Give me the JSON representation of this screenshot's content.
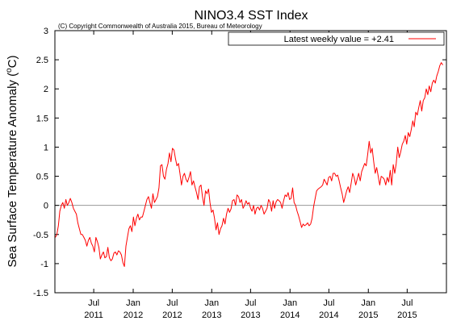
{
  "chart_data": {
    "type": "line",
    "title": "NINO3.4 SST Index",
    "subtitle": "(C) Copyright Commonwealth of Australia 2015, Bureau of Meteorology",
    "xlabel": "",
    "ylabel_prefix": "Sea Surface Temperature Anomaly (",
    "ylabel_sup": "o",
    "ylabel_suffix": "C)",
    "ylim": [
      -1.5,
      3
    ],
    "yticks": [
      -1.5,
      -1,
      -0.5,
      0,
      0.5,
      1,
      1.5,
      2,
      2.5,
      3
    ],
    "ytick_labels": [
      "-1.5",
      "-1",
      "-0.5",
      "0",
      "0.5",
      "1",
      "1.5",
      "2",
      "2.5",
      "3"
    ],
    "xlim": [
      "2011-01-01",
      "2015-12-31"
    ],
    "xticks": [
      {
        "date": "2011-07-01",
        "month": "Jul",
        "year": "2011"
      },
      {
        "date": "2012-01-01",
        "month": "Jan",
        "year": "2012"
      },
      {
        "date": "2012-07-01",
        "month": "Jul",
        "year": "2012"
      },
      {
        "date": "2013-01-01",
        "month": "Jan",
        "year": "2013"
      },
      {
        "date": "2013-07-01",
        "month": "Jul",
        "year": "2013"
      },
      {
        "date": "2014-01-01",
        "month": "Jan",
        "year": "2014"
      },
      {
        "date": "2014-07-01",
        "month": "Jul",
        "year": "2014"
      },
      {
        "date": "2015-01-01",
        "month": "Jan",
        "year": "2015"
      },
      {
        "date": "2015-07-01",
        "month": "Jul",
        "year": "2015"
      }
    ],
    "grid": false,
    "zero_line": true,
    "legend": {
      "label": "Latest weekly value = +2.41",
      "position": "top-right"
    },
    "series": [
      {
        "color": "#ff0000",
        "x": [
          "2011-01-03",
          "2011-01-10",
          "2011-01-17",
          "2011-01-24",
          "2011-01-31",
          "2011-02-07",
          "2011-02-14",
          "2011-02-21",
          "2011-02-28",
          "2011-03-07",
          "2011-03-14",
          "2011-03-21",
          "2011-03-28",
          "2011-04-04",
          "2011-04-11",
          "2011-04-18",
          "2011-04-25",
          "2011-05-02",
          "2011-05-09",
          "2011-05-16",
          "2011-05-23",
          "2011-05-30",
          "2011-06-06",
          "2011-06-13",
          "2011-06-20",
          "2011-06-27",
          "2011-07-04",
          "2011-07-11",
          "2011-07-18",
          "2011-07-25",
          "2011-08-01",
          "2011-08-08",
          "2011-08-15",
          "2011-08-22",
          "2011-08-29",
          "2011-09-05",
          "2011-09-12",
          "2011-09-19",
          "2011-09-26",
          "2011-10-03",
          "2011-10-10",
          "2011-10-17",
          "2011-10-24",
          "2011-10-31",
          "2011-11-07",
          "2011-11-14",
          "2011-11-21",
          "2011-11-28",
          "2011-12-05",
          "2011-12-12",
          "2011-12-19",
          "2011-12-26",
          "2012-01-02",
          "2012-01-09",
          "2012-01-16",
          "2012-01-23",
          "2012-01-30",
          "2012-02-06",
          "2012-02-13",
          "2012-02-20",
          "2012-02-27",
          "2012-03-05",
          "2012-03-12",
          "2012-03-19",
          "2012-03-26",
          "2012-04-02",
          "2012-04-09",
          "2012-04-16",
          "2012-04-23",
          "2012-04-30",
          "2012-05-07",
          "2012-05-14",
          "2012-05-21",
          "2012-05-28",
          "2012-06-04",
          "2012-06-11",
          "2012-06-18",
          "2012-06-25",
          "2012-07-02",
          "2012-07-09",
          "2012-07-16",
          "2012-07-23",
          "2012-07-30",
          "2012-08-06",
          "2012-08-13",
          "2012-08-20",
          "2012-08-27",
          "2012-09-03",
          "2012-09-10",
          "2012-09-17",
          "2012-09-24",
          "2012-10-01",
          "2012-10-08",
          "2012-10-15",
          "2012-10-22",
          "2012-10-29",
          "2012-11-05",
          "2012-11-12",
          "2012-11-19",
          "2012-11-26",
          "2012-12-03",
          "2012-12-10",
          "2012-12-17",
          "2012-12-24",
          "2012-12-31",
          "2013-01-07",
          "2013-01-14",
          "2013-01-21",
          "2013-01-28",
          "2013-02-04",
          "2013-02-11",
          "2013-02-18",
          "2013-02-25",
          "2013-03-04",
          "2013-03-11",
          "2013-03-18",
          "2013-03-25",
          "2013-04-01",
          "2013-04-08",
          "2013-04-15",
          "2013-04-22",
          "2013-04-29",
          "2013-05-06",
          "2013-05-13",
          "2013-05-20",
          "2013-05-27",
          "2013-06-03",
          "2013-06-10",
          "2013-06-17",
          "2013-06-24",
          "2013-07-01",
          "2013-07-08",
          "2013-07-15",
          "2013-07-22",
          "2013-07-29",
          "2013-08-05",
          "2013-08-12",
          "2013-08-19",
          "2013-08-26",
          "2013-09-02",
          "2013-09-09",
          "2013-09-16",
          "2013-09-23",
          "2013-09-30",
          "2013-10-07",
          "2013-10-14",
          "2013-10-21",
          "2013-10-28",
          "2013-11-04",
          "2013-11-11",
          "2013-11-18",
          "2013-11-25",
          "2013-12-02",
          "2013-12-09",
          "2013-12-16",
          "2013-12-23",
          "2013-12-30",
          "2014-01-06",
          "2014-01-13",
          "2014-01-20",
          "2014-01-27",
          "2014-02-03",
          "2014-02-10",
          "2014-02-17",
          "2014-02-24",
          "2014-03-03",
          "2014-03-10",
          "2014-03-17",
          "2014-03-24",
          "2014-03-31",
          "2014-04-07",
          "2014-04-14",
          "2014-04-21",
          "2014-04-28",
          "2014-05-05",
          "2014-05-12",
          "2014-05-19",
          "2014-05-26",
          "2014-06-02",
          "2014-06-09",
          "2014-06-16",
          "2014-06-23",
          "2014-06-30",
          "2014-07-07",
          "2014-07-14",
          "2014-07-21",
          "2014-07-28",
          "2014-08-04",
          "2014-08-11",
          "2014-08-18",
          "2014-08-25",
          "2014-09-01",
          "2014-09-08",
          "2014-09-15",
          "2014-09-22",
          "2014-09-29",
          "2014-10-06",
          "2014-10-13",
          "2014-10-20",
          "2014-10-27",
          "2014-11-03",
          "2014-11-10",
          "2014-11-17",
          "2014-11-24",
          "2014-12-01",
          "2014-12-08",
          "2014-12-15",
          "2014-12-22",
          "2014-12-29",
          "2015-01-05",
          "2015-01-12",
          "2015-01-19",
          "2015-01-26",
          "2015-02-02",
          "2015-02-09",
          "2015-02-16",
          "2015-02-23",
          "2015-03-02",
          "2015-03-09",
          "2015-03-16",
          "2015-03-23",
          "2015-03-30",
          "2015-04-06",
          "2015-04-13",
          "2015-04-20",
          "2015-04-27",
          "2015-05-04",
          "2015-05-11",
          "2015-05-18",
          "2015-05-25",
          "2015-06-01",
          "2015-06-08",
          "2015-06-15",
          "2015-06-22",
          "2015-06-29",
          "2015-07-06",
          "2015-07-13",
          "2015-07-20",
          "2015-07-27",
          "2015-08-03",
          "2015-08-10",
          "2015-08-17",
          "2015-08-24",
          "2015-08-31",
          "2015-09-07",
          "2015-09-14",
          "2015-09-21",
          "2015-09-28",
          "2015-10-05",
          "2015-10-12",
          "2015-10-19",
          "2015-10-26",
          "2015-11-02",
          "2015-11-09",
          "2015-11-16",
          "2015-11-23",
          "2015-11-30",
          "2015-12-07",
          "2015-12-14"
        ],
        "values": [
          -0.55,
          -0.5,
          -0.35,
          -0.1,
          0.0,
          0.05,
          -0.05,
          0.1,
          0.0,
          0.05,
          0.12,
          0.05,
          -0.05,
          -0.1,
          -0.15,
          -0.3,
          -0.4,
          -0.5,
          -0.5,
          -0.55,
          -0.6,
          -0.7,
          -0.6,
          -0.55,
          -0.65,
          -0.7,
          -0.8,
          -0.55,
          -0.62,
          -0.72,
          -0.92,
          -0.85,
          -0.8,
          -0.9,
          -0.88,
          -0.72,
          -0.9,
          -0.95,
          -0.92,
          -0.82,
          -0.8,
          -0.85,
          -0.78,
          -0.8,
          -0.85,
          -0.98,
          -1.05,
          -0.7,
          -0.55,
          -0.4,
          -0.35,
          -0.45,
          -0.2,
          -0.35,
          -0.22,
          -0.15,
          -0.25,
          -0.2,
          -0.2,
          -0.1,
          0.0,
          0.1,
          0.15,
          0.05,
          -0.05,
          0.2,
          0.05,
          0.1,
          0.15,
          0.3,
          0.68,
          0.7,
          0.5,
          0.45,
          0.62,
          0.72,
          0.9,
          0.75,
          0.98,
          0.95,
          0.8,
          0.68,
          0.72,
          0.55,
          0.35,
          0.5,
          0.55,
          0.45,
          0.4,
          0.48,
          0.58,
          0.35,
          0.42,
          0.32,
          0.22,
          0.1,
          0.32,
          0.35,
          0.15,
          0.0,
          0.25,
          0.2,
          0.28,
          0.05,
          -0.12,
          -0.08,
          -0.22,
          -0.42,
          -0.3,
          -0.5,
          -0.4,
          -0.35,
          -0.22,
          -0.32,
          -0.15,
          -0.05,
          -0.12,
          -0.06,
          0.08,
          0.1,
          0.0,
          0.18,
          0.15,
          0.05,
          0.1,
          -0.05,
          0.0,
          0.08,
          0.02,
          0.05,
          -0.05,
          -0.1,
          0.0,
          -0.15,
          -0.05,
          -0.03,
          -0.08,
          0.0,
          -0.05,
          -0.15,
          -0.1,
          -0.05,
          0.1,
          0.05,
          -0.1,
          0.08,
          -0.05,
          0.06,
          0.1,
          0.08,
          0.05,
          -0.05,
          0.08,
          0.18,
          0.15,
          0.22,
          0.1,
          0.12,
          0.3,
          0.05,
          0.0,
          -0.1,
          -0.18,
          -0.28,
          -0.38,
          -0.32,
          -0.35,
          -0.33,
          -0.3,
          -0.35,
          -0.32,
          -0.22,
          -0.02,
          0.12,
          0.25,
          0.28,
          0.3,
          0.32,
          0.35,
          0.45,
          0.4,
          0.35,
          0.48,
          0.5,
          0.42,
          0.55,
          0.55,
          0.5,
          0.52,
          0.42,
          0.3,
          0.2,
          0.05,
          0.15,
          0.25,
          0.32,
          0.22,
          0.38,
          0.55,
          0.48,
          0.35,
          0.45,
          0.55,
          0.42,
          0.58,
          0.65,
          0.72,
          0.68,
          0.88,
          1.1,
          0.9,
          0.98,
          0.75,
          0.55,
          0.65,
          0.5,
          0.35,
          0.5,
          0.48,
          0.45,
          0.35,
          0.48,
          0.4,
          0.6,
          0.35,
          0.7,
          0.55,
          0.72,
          1.0,
          0.82,
          0.92,
          1.05,
          1.1,
          1.2,
          1.05,
          1.25,
          1.18,
          1.3,
          1.45,
          1.35,
          1.6,
          1.55,
          1.68,
          1.8,
          1.62,
          1.8,
          1.85,
          2.0,
          1.9,
          2.05,
          1.95,
          2.1,
          2.15,
          2.1,
          2.22,
          2.3,
          2.4,
          2.45,
          2.41
        ]
      }
    ]
  }
}
